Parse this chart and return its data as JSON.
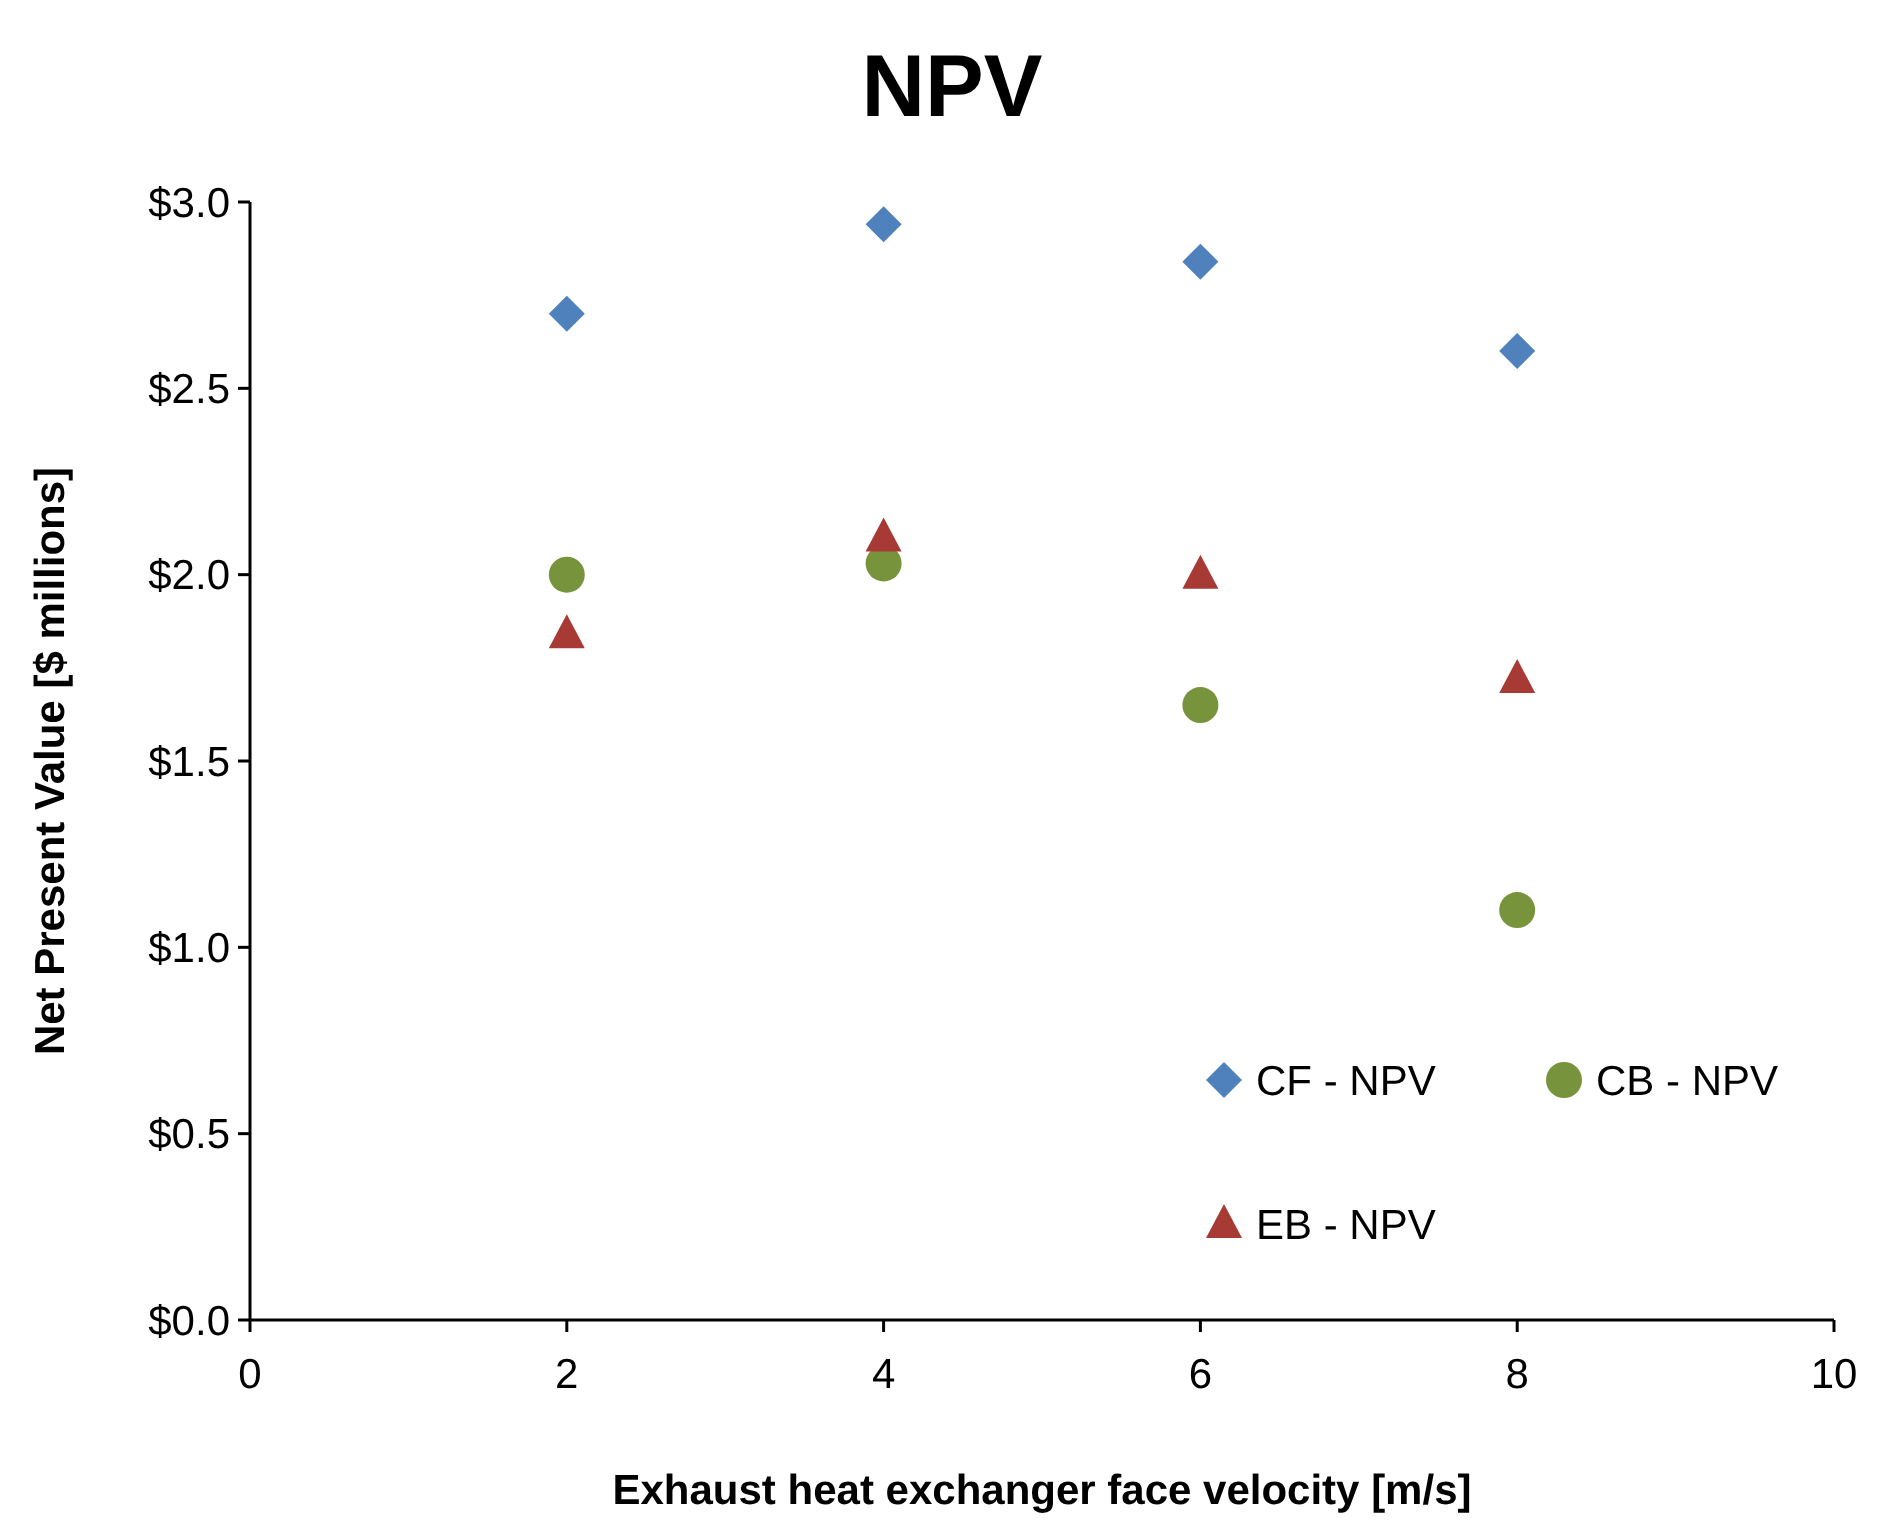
{
  "chart_data": {
    "type": "scatter",
    "title": "NPV",
    "xlabel": "Exhaust heat exchanger face velocity [m/s]",
    "ylabel": "Net Present Value [$ millions]",
    "x": [
      2,
      4,
      6,
      8
    ],
    "series": [
      {
        "name": "CF - NPV",
        "color": "#4f81bd",
        "marker": "diamond",
        "values": [
          2.7,
          2.94,
          2.84,
          2.6
        ]
      },
      {
        "name": "CB - NPV",
        "color": "#77943c",
        "marker": "circle",
        "values": [
          2.0,
          2.03,
          1.65,
          1.1
        ]
      },
      {
        "name": "EB - NPV",
        "color": "#a83a36",
        "marker": "triangle",
        "values": [
          1.84,
          2.1,
          2.0,
          1.72
        ]
      }
    ],
    "xlim": [
      0,
      10
    ],
    "xticks": [
      0,
      2,
      4,
      6,
      8,
      10
    ],
    "ylim": [
      0,
      3
    ],
    "yticks": [
      {
        "value": 0,
        "label": "$0.0"
      },
      {
        "value": 0.5,
        "label": "$0.5"
      },
      {
        "value": 1,
        "label": "$1.0"
      },
      {
        "value": 1.5,
        "label": "$1.5"
      },
      {
        "value": 2,
        "label": "$2.0"
      },
      {
        "value": 2.5,
        "label": "$2.5"
      },
      {
        "value": 3,
        "label": "$3.0"
      }
    ],
    "grid": false,
    "legend": "bottom right"
  }
}
